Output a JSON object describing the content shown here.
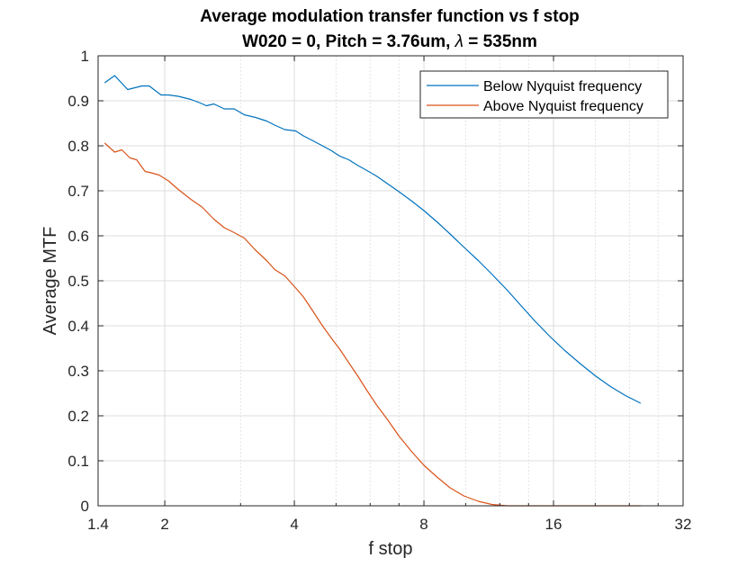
{
  "chart_data": {
    "type": "line",
    "title_line1": "Average modulation transfer function vs f stop",
    "title_line2_prefix": "W020 = 0, Pitch = 3.76um, ",
    "title_line2_symbol": "λ",
    "title_line2_suffix": " = 535nm",
    "xlabel": "f stop",
    "ylabel": "Average MTF",
    "x_scale": "log2",
    "xlim": [
      1.4,
      32
    ],
    "ylim": [
      0,
      1
    ],
    "xticks": [
      1.4,
      2,
      4,
      8,
      16,
      32
    ],
    "xtick_labels": [
      "1.4",
      "2",
      "4",
      "8",
      "16",
      "32"
    ],
    "yticks": [
      0,
      0.1,
      0.2,
      0.3,
      0.4,
      0.5,
      0.6,
      0.7,
      0.8,
      0.9,
      1
    ],
    "ytick_labels": [
      "0",
      "0.1",
      "0.2",
      "0.3",
      "0.4",
      "0.5",
      "0.6",
      "0.7",
      "0.8",
      "0.9",
      "1"
    ],
    "grid": true,
    "legend_position": "top-right",
    "series": [
      {
        "name": "Below Nyquist frequency",
        "color": "#0072BD",
        "x": [
          1.45,
          1.53,
          1.64,
          1.77,
          1.84,
          1.96,
          2.04,
          2.15,
          2.3,
          2.42,
          2.5,
          2.6,
          2.75,
          2.9,
          3.06,
          3.25,
          3.45,
          3.6,
          3.8,
          4.03,
          4.2,
          4.4,
          4.65,
          4.88,
          5.1,
          5.35,
          5.6,
          5.9,
          6.2,
          6.6,
          7.0,
          7.5,
          8.0,
          8.6,
          9.2,
          9.9,
          10.7,
          11.5,
          12.5,
          13.5,
          14.5,
          15.7,
          17.0,
          18.5,
          20.0,
          21.7,
          23.5,
          25.5
        ],
        "y": [
          0.94,
          0.956,
          0.925,
          0.933,
          0.933,
          0.913,
          0.913,
          0.91,
          0.903,
          0.895,
          0.889,
          0.893,
          0.882,
          0.882,
          0.869,
          0.863,
          0.855,
          0.846,
          0.836,
          0.833,
          0.822,
          0.812,
          0.8,
          0.789,
          0.777,
          0.769,
          0.757,
          0.745,
          0.733,
          0.715,
          0.698,
          0.677,
          0.656,
          0.63,
          0.604,
          0.575,
          0.545,
          0.515,
          0.479,
          0.443,
          0.41,
          0.376,
          0.345,
          0.315,
          0.289,
          0.265,
          0.245,
          0.228
        ]
      },
      {
        "name": "Above Nyquist frequency",
        "color": "#D95319",
        "x": [
          1.45,
          1.53,
          1.59,
          1.66,
          1.72,
          1.8,
          1.86,
          1.94,
          2.04,
          2.15,
          2.3,
          2.44,
          2.6,
          2.75,
          2.9,
          3.06,
          3.25,
          3.45,
          3.6,
          3.8,
          4.03,
          4.2,
          4.4,
          4.65,
          4.88,
          5.1,
          5.35,
          5.6,
          5.9,
          6.2,
          6.6,
          7.0,
          7.5,
          8.0,
          8.6,
          9.2,
          9.9,
          10.7,
          11.5,
          12.5,
          13.5,
          14.5,
          15.7,
          17.0,
          18.5,
          20.0,
          21.7,
          23.5,
          25.5
        ],
        "y": [
          0.806,
          0.786,
          0.791,
          0.773,
          0.769,
          0.743,
          0.74,
          0.735,
          0.722,
          0.703,
          0.681,
          0.664,
          0.637,
          0.618,
          0.607,
          0.595,
          0.568,
          0.545,
          0.525,
          0.511,
          0.484,
          0.464,
          0.435,
          0.4,
          0.372,
          0.348,
          0.318,
          0.29,
          0.256,
          0.225,
          0.19,
          0.155,
          0.12,
          0.09,
          0.063,
          0.04,
          0.022,
          0.01,
          0.003,
          0.0,
          0.0,
          0.0,
          0.0,
          0.0,
          0.0,
          0.0,
          0.0,
          0.0,
          0.0
        ]
      }
    ]
  }
}
